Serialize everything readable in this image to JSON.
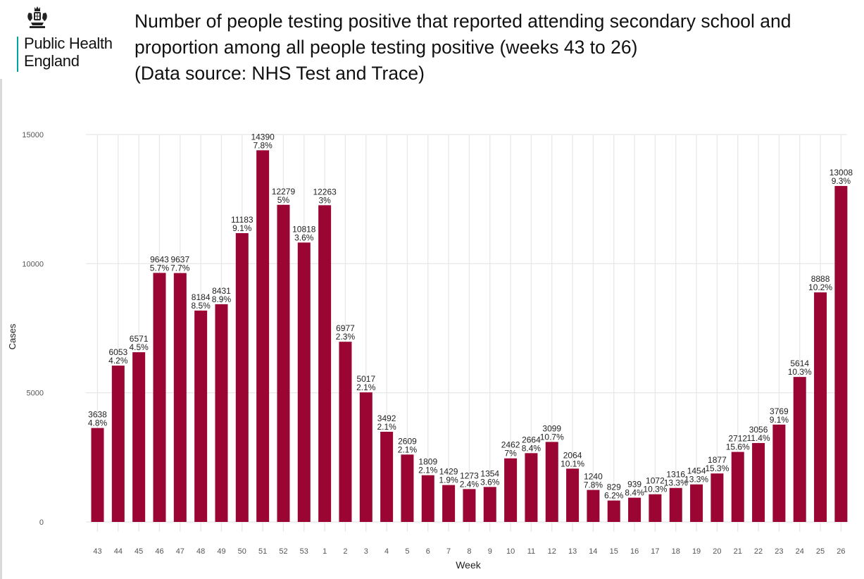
{
  "header": {
    "logo_line1": "Public Health",
    "logo_line2": "England",
    "title_lines": [
      "Number of people testing positive that reported attending secondary school and",
      "proportion among all people testing positive (weeks 43 to 26)",
      "(Data source: NHS Test and Trace)"
    ]
  },
  "colors": {
    "bar": "#9b0533",
    "grid": "#e6e6e6",
    "text": "#333333"
  },
  "icons": {
    "logo_crest": "royal-crest-icon"
  },
  "chart_data": {
    "type": "bar",
    "xlabel": "Week",
    "ylabel": "Cases",
    "ylim": [
      0,
      15000
    ],
    "yticks": [
      0,
      5000,
      10000,
      15000
    ],
    "grid": true,
    "categories": [
      "43",
      "44",
      "45",
      "46",
      "47",
      "48",
      "49",
      "50",
      "51",
      "52",
      "53",
      "1",
      "2",
      "3",
      "4",
      "5",
      "6",
      "7",
      "8",
      "9",
      "10",
      "11",
      "12",
      "13",
      "14",
      "15",
      "16",
      "17",
      "18",
      "19",
      "20",
      "21",
      "22",
      "23",
      "24",
      "25",
      "26"
    ],
    "values": [
      3638,
      6053,
      6571,
      9643,
      9637,
      8184,
      8431,
      11183,
      14390,
      12279,
      10818,
      12263,
      6977,
      5017,
      3492,
      2609,
      1809,
      1429,
      1273,
      1354,
      2462,
      2664,
      3099,
      2064,
      1240,
      829,
      939,
      1072,
      1316,
      1454,
      1877,
      2712,
      3056,
      3769,
      5614,
      8888,
      13008
    ],
    "proportions": [
      "4.8%",
      "4.2%",
      "4.5%",
      "5.7%",
      "7.7%",
      "8.5%",
      "8.9%",
      "9.1%",
      "7.8%",
      "5%",
      "3.6%",
      "3%",
      "2.3%",
      "2.1%",
      "2.1%",
      "2.1%",
      "2.1%",
      "1.9%",
      "2.4%",
      "3.6%",
      "7%",
      "8.4%",
      "10.7%",
      "10.1%",
      "7.8%",
      "6.2%",
      "8.4%",
      "10.3%",
      "13.3%",
      "13.3%",
      "15.3%",
      "15.6%",
      "11.4%",
      "9.1%",
      "10.3%",
      "10.2%",
      "9.3%"
    ]
  }
}
